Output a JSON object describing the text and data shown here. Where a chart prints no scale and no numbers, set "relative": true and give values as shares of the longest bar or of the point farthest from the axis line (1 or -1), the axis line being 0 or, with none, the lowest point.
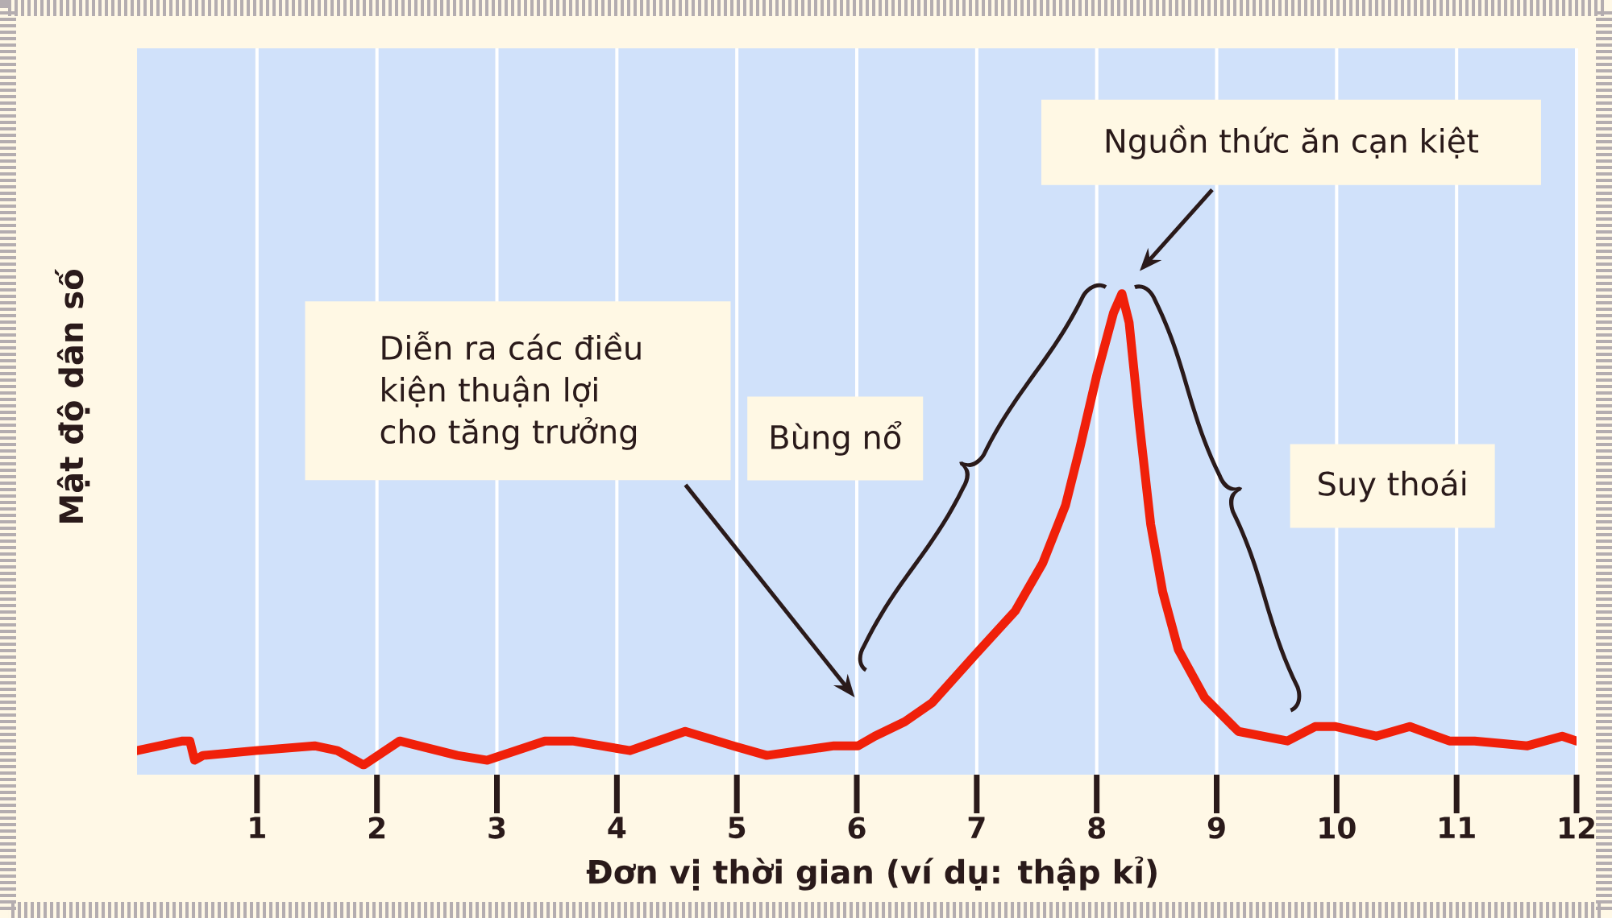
{
  "chart_data": {
    "type": "line",
    "relative": true,
    "xlabel": "Đơn vị thời gian (ví dụ: thập kỉ)",
    "ylabel": "Mật độ dân số",
    "x": [
      0,
      0.38,
      0.44,
      0.48,
      0.55,
      0.99,
      1.48,
      1.67,
      1.89,
      2.19,
      2.67,
      2.92,
      3.4,
      3.63,
      4.11,
      4.57,
      4.97,
      5.25,
      5.81,
      6.01,
      6.15,
      6.4,
      6.63,
      6.99,
      7.32,
      7.55,
      7.74,
      7.86,
      8.0,
      8.14,
      8.21,
      8.27,
      8.36,
      8.45,
      8.55,
      8.68,
      8.9,
      9.18,
      9.59,
      9.82,
      9.99,
      10.33,
      10.61,
      10.94,
      11.15,
      11.59,
      11.88,
      12
    ],
    "series": [
      {
        "color": "#f0200a",
        "values": [
          0.05,
          0.07,
          0.07,
          0.03,
          0.04,
          0.05,
          0.06,
          0.05,
          0.02,
          0.07,
          0.04,
          0.03,
          0.07,
          0.07,
          0.05,
          0.09,
          0.06,
          0.04,
          0.06,
          0.06,
          0.08,
          0.11,
          0.15,
          0.25,
          0.34,
          0.44,
          0.56,
          0.68,
          0.83,
          0.96,
          1.0,
          0.94,
          0.72,
          0.52,
          0.38,
          0.26,
          0.16,
          0.09,
          0.07,
          0.1,
          0.1,
          0.08,
          0.1,
          0.07,
          0.07,
          0.06,
          0.08,
          0.07
        ]
      }
    ],
    "xlim": [
      0,
      12
    ],
    "xticks": [
      1,
      2,
      3,
      4,
      5,
      6,
      7,
      8,
      9,
      10,
      11,
      12
    ],
    "grid": "x",
    "annotations": [
      "Diễn ra các điều kiện thuận lợi cho tăng trưởng",
      "Bùng nổ",
      "Nguồn thức ăn cạn kiệt",
      "Suy thoái"
    ]
  }
}
